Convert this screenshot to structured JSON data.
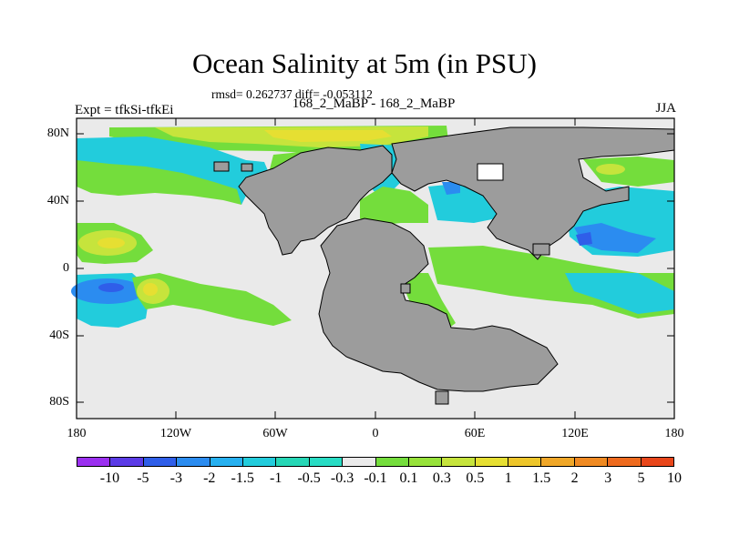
{
  "title": "Ocean Salinity at 5m (in PSU)",
  "stats_text": "rmsd= 0.262737 diff= -0.053112",
  "left_label": "Expt = tfkSi-tfkEi",
  "center_label": "168_2_MaBP - 168_2_MaBP",
  "right_label": "JJA",
  "lat_labels": [
    "80N",
    "40N",
    "0",
    "40S",
    "80S"
  ],
  "lon_labels": [
    "180",
    "120W",
    "60W",
    "0",
    "60E",
    "120E",
    "180"
  ],
  "colorbar": {
    "colors": [
      "#9b30f0",
      "#5b3be6",
      "#2f5ee9",
      "#2b8cf0",
      "#26b0f0",
      "#22ccdc",
      "#25d7b6",
      "#28dcc4",
      "#eaeaea",
      "#74dd3c",
      "#97e23a",
      "#c6e43c",
      "#e6df32",
      "#eec62a",
      "#f0a728",
      "#f08a22",
      "#ee6a1e",
      "#e8461a"
    ],
    "labels": [
      "-10",
      "-5",
      "-3",
      "-2",
      "-1.5",
      "-1",
      "-0.5",
      "-0.3",
      "-0.1",
      "0.1",
      "0.3",
      "0.5",
      "1",
      "1.5",
      "2",
      "3",
      "5",
      "10"
    ]
  },
  "colors": {
    "land": "#9c9c9c",
    "neutral": "#eaeaea",
    "green": "#74dd3c",
    "cyan": "#22ccdc",
    "blue": "#2b8cf0",
    "yellow": "#c6e43c"
  }
}
